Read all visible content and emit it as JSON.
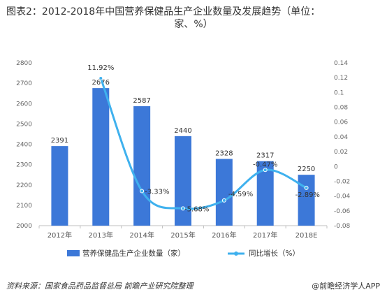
{
  "title": {
    "line1": "图表2：2012-2018年中国营养保健品生产企业数量及发展趋势（单位：",
    "line2": "家、%）"
  },
  "source": "资料来源：国家食品药品监督总局 前瞻产业研究院整理",
  "brand": "@前瞻经济学人APP",
  "colors": {
    "bar": "#3c78d8",
    "line": "#3fb1ee",
    "marker": "#3fb1ee"
  },
  "chart_data": {
    "type": "bar",
    "categories": [
      "2012年",
      "2013年",
      "2014年",
      "2015年",
      "2016年",
      "2017年",
      "2018E"
    ],
    "series": [
      {
        "name": "营养保健品生产企业数量（家）",
        "type": "bar",
        "axis": "left",
        "values": [
          2391,
          2676,
          2587,
          2440,
          2328,
          2317,
          2250
        ]
      },
      {
        "name": "同比增长（%）",
        "type": "line",
        "axis": "right",
        "smooth": true,
        "values": [
          null,
          0.1192,
          -0.0333,
          -0.0568,
          -0.0459,
          -0.0047,
          -0.0289
        ]
      }
    ],
    "bar_labels": [
      "2391",
      "2676",
      "2587",
      "2440",
      "2328",
      "2317",
      "2250"
    ],
    "line_labels": [
      null,
      "11.92%",
      "-3.33%",
      "-5.68%",
      "-4.59%",
      "-0.47%",
      "-2.89%"
    ],
    "ylim_left": [
      2000,
      2800
    ],
    "yticks_left": [
      "2000",
      "2100",
      "2200",
      "2300",
      "2400",
      "2500",
      "2600",
      "2700",
      "2800"
    ],
    "ylim_right": [
      -0.08,
      0.14
    ],
    "yticks_right": [
      "-0.08",
      "-0.06",
      "-0.04",
      "-0.02",
      "0",
      "0.02",
      "0.04",
      "0.06",
      "0.08",
      "0.1",
      "0.12",
      "0.14"
    ],
    "legend": [
      "营养保健品生产企业数量（家）",
      "同比增长（%）"
    ],
    "legend_position": "bottom",
    "grid": false
  }
}
